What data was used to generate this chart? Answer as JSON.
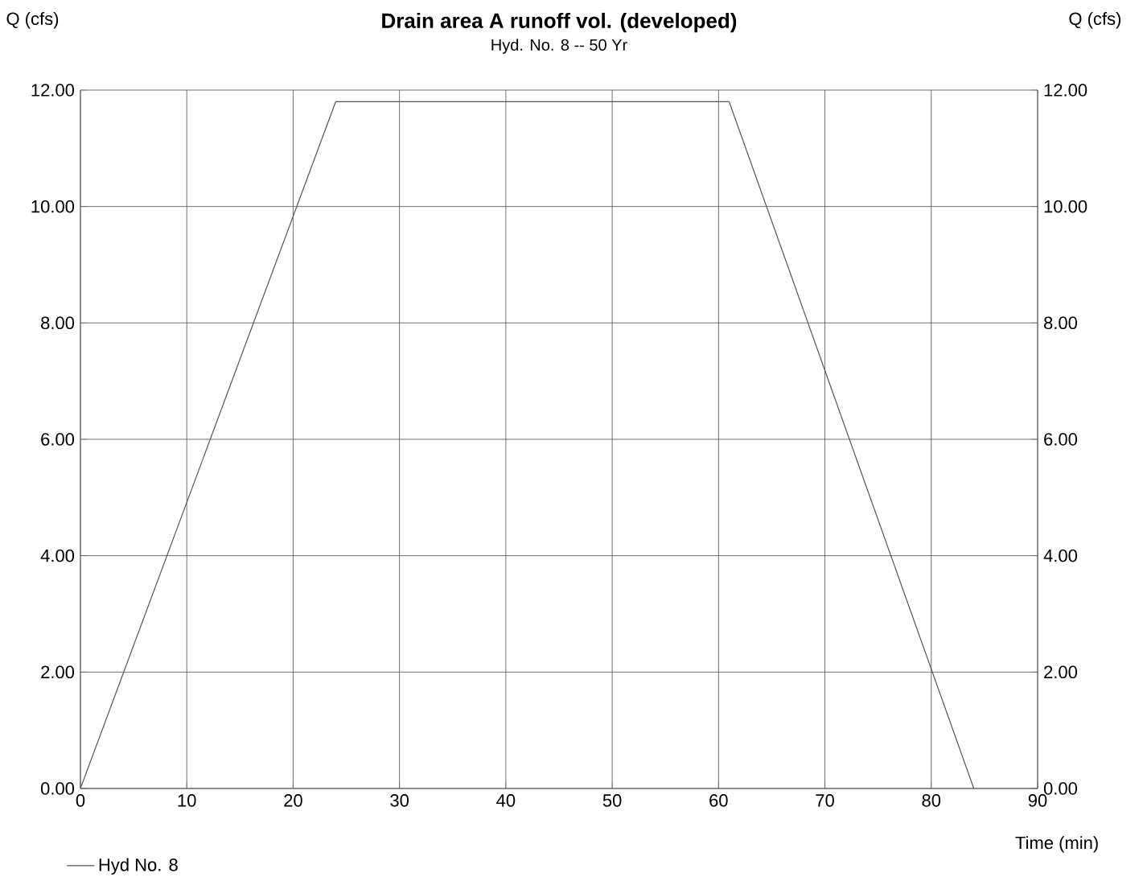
{
  "chart_data": {
    "type": "line",
    "title": "Drain area A runoff vol. (developed)",
    "subtitle": "Hyd. No. 8 -- 50 Yr",
    "xlabel": "Time (min)",
    "ylabel": "Q (cfs)",
    "y2label": "Q (cfs)",
    "series": [
      {
        "name": "Hyd No. 8",
        "color": "#555555",
        "x": [
          0,
          24,
          61,
          84
        ],
        "values": [
          0,
          11.8,
          11.8,
          0
        ]
      }
    ],
    "xlim": [
      0,
      90
    ],
    "xticks": [
      0,
      10,
      20,
      30,
      40,
      50,
      60,
      70,
      80,
      90
    ],
    "ylim": [
      0,
      12
    ],
    "yticks": [
      {
        "value": 0,
        "label": "0.00"
      },
      {
        "value": 2,
        "label": "2.00"
      },
      {
        "value": 4,
        "label": "4.00"
      },
      {
        "value": 6,
        "label": "6.00"
      },
      {
        "value": 8,
        "label": "8.00"
      },
      {
        "value": 10,
        "label": "10.00"
      },
      {
        "value": 12,
        "label": "12.00"
      }
    ],
    "y2lim": [
      0,
      12
    ],
    "y2ticks": [
      {
        "value": 0,
        "label": "0.00"
      },
      {
        "value": 2,
        "label": "2.00"
      },
      {
        "value": 4,
        "label": "4.00"
      },
      {
        "value": 6,
        "label": "6.00"
      },
      {
        "value": 8,
        "label": "8.00"
      },
      {
        "value": 10,
        "label": "10.00"
      },
      {
        "value": 12,
        "label": "12.00"
      }
    ],
    "grid": true,
    "legend": "bottom left",
    "marker": "none",
    "line_style": "solid"
  }
}
